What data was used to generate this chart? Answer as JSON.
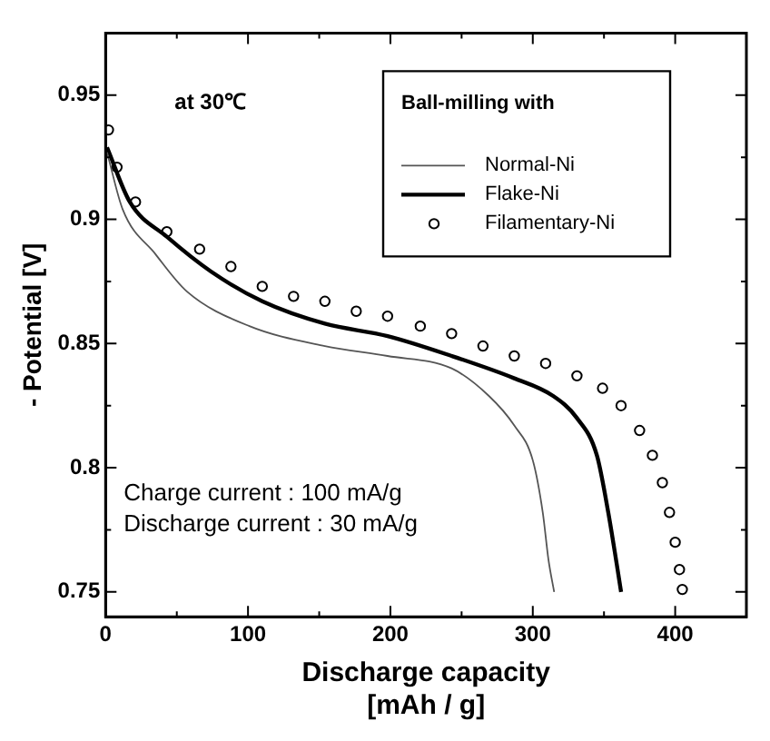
{
  "chart_data": {
    "type": "line",
    "xlabel": "Discharge capacity\n[mAh / g]",
    "ylabel": "- Potential [V]",
    "legend_title": "Ball-milling with",
    "xlim": [
      0,
      450
    ],
    "ylim": [
      0.74,
      0.975
    ],
    "xticks": [
      0,
      {
        "value": 50,
        "label": null
      },
      100,
      {
        "value": 150,
        "label": null
      },
      200,
      {
        "value": 250,
        "label": null
      },
      300,
      {
        "value": 350,
        "label": null
      },
      400,
      {
        "value": 450,
        "label": null
      }
    ],
    "yticks": [
      0.75,
      {
        "value": 0.775,
        "label": null
      },
      0.8,
      {
        "value": 0.825,
        "label": null
      },
      0.85,
      {
        "value": 0.875,
        "label": null
      },
      0.9,
      {
        "value": 0.925,
        "label": null
      },
      0.95
    ],
    "grid": false,
    "legend": "top right",
    "annotations": [
      "at 30℃",
      "Charge current : 100 mA/g",
      "Discharge current : 30 mA/g"
    ],
    "series": [
      {
        "name": "Normal-Ni",
        "type": "line",
        "marker": "none",
        "color": "#555555",
        "x": [
          1,
          12,
          35,
          57,
          101,
          154,
          198,
          243,
          269,
          287,
          300,
          307,
          311,
          315
        ],
        "values": [
          0.927,
          0.904,
          0.886,
          0.871,
          0.857,
          0.849,
          0.845,
          0.84,
          0.829,
          0.817,
          0.803,
          0.782,
          0.763,
          0.75
        ]
      },
      {
        "name": "Flake-Ni",
        "type": "line",
        "marker": "none",
        "color": "#000000",
        "x": [
          1,
          17,
          43,
          74,
          110,
          154,
          198,
          243,
          287,
          314,
          331,
          345,
          353,
          359,
          362
        ],
        "values": [
          0.929,
          0.907,
          0.893,
          0.879,
          0.867,
          0.858,
          0.853,
          0.845,
          0.836,
          0.829,
          0.82,
          0.805,
          0.782,
          0.761,
          0.75
        ]
      },
      {
        "name": "Filamentary-Ni",
        "type": "scatter",
        "marker": "circle",
        "color": "#000000",
        "x": [
          2,
          8,
          21,
          43,
          66,
          88,
          110,
          132,
          154,
          176,
          198,
          221,
          243,
          265,
          287,
          309,
          331,
          349,
          362,
          375,
          384,
          391,
          396,
          400,
          403,
          405
        ],
        "values": [
          0.936,
          0.921,
          0.907,
          0.895,
          0.888,
          0.881,
          0.873,
          0.869,
          0.867,
          0.863,
          0.861,
          0.857,
          0.854,
          0.849,
          0.845,
          0.842,
          0.837,
          0.832,
          0.825,
          0.815,
          0.805,
          0.794,
          0.782,
          0.77,
          0.759,
          0.751
        ]
      }
    ]
  }
}
